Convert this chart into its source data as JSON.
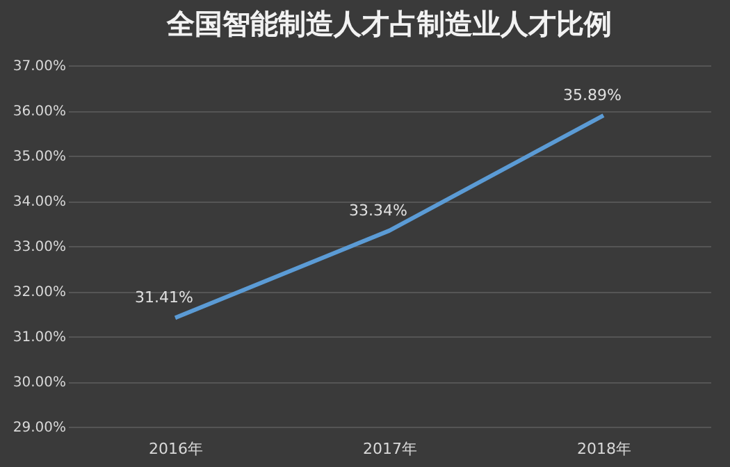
{
  "chart_data": {
    "type": "line",
    "title": "全国智能制造人才占制造业人才比例",
    "categories": [
      "2016年",
      "2017年",
      "2018年"
    ],
    "series": [
      {
        "color": "#5b9bd5",
        "values": [
          31.41,
          33.34,
          35.89
        ],
        "value_labels": [
          "31.41%",
          "33.34%",
          "35.89%"
        ]
      }
    ],
    "ylim": [
      29,
      37
    ],
    "yticks": [
      {
        "value": 29,
        "label": "29.00%"
      },
      {
        "value": 30,
        "label": "30.00%"
      },
      {
        "value": 31,
        "label": "31.00%"
      },
      {
        "value": 32,
        "label": "32.00%"
      },
      {
        "value": 33,
        "label": "33.00%"
      },
      {
        "value": 34,
        "label": "34.00%"
      },
      {
        "value": 35,
        "label": "35.00%"
      },
      {
        "value": 36,
        "label": "36.00%"
      },
      {
        "value": 37,
        "label": "37.00%"
      }
    ],
    "grid": "y",
    "marker": "none",
    "line_style": "solid"
  }
}
